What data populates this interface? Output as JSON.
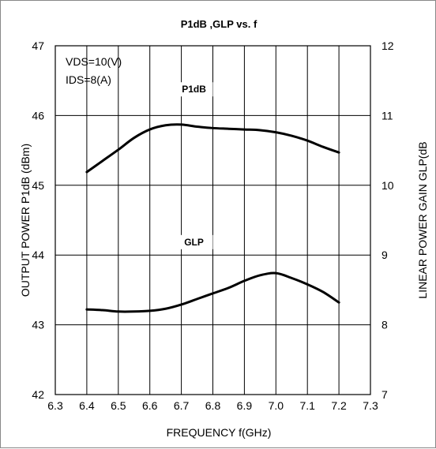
{
  "chart_data": {
    "type": "line",
    "title": "P1dB ,GLP vs. f",
    "xlabel": "FREQUENCY f(GHz)",
    "ylabel_left": "OUTPUT POWER P1dB (dBm)",
    "ylabel_right": "LINEAR POWER GAIN GLP(dB",
    "xlim": [
      6.3,
      7.3
    ],
    "ylim_left": [
      42,
      47
    ],
    "ylim_right": [
      7,
      12
    ],
    "x_ticks": [
      "6.3",
      "6.4",
      "6.5",
      "6.6",
      "6.7",
      "6.8",
      "6.9",
      "7.0",
      "7.1",
      "7.2",
      "7.3"
    ],
    "y_left_ticks": [
      "42",
      "43",
      "44",
      "45",
      "46",
      "47"
    ],
    "y_right_ticks": [
      "7",
      "8",
      "9",
      "10",
      "11",
      "12"
    ],
    "grid": true,
    "annotations": [
      "VDS=10(V)",
      "IDS=8(A)"
    ],
    "series": [
      {
        "name": "P1dB",
        "axis": "left",
        "color": "#000000",
        "x": [
          6.4,
          6.45,
          6.5,
          6.55,
          6.6,
          6.65,
          6.7,
          6.75,
          6.8,
          6.85,
          6.9,
          6.95,
          7.0,
          7.05,
          7.1,
          7.15,
          7.2
        ],
        "y": [
          45.19,
          45.35,
          45.51,
          45.68,
          45.8,
          45.86,
          45.87,
          45.84,
          45.82,
          45.81,
          45.8,
          45.79,
          45.76,
          45.71,
          45.64,
          45.55,
          45.47
        ]
      },
      {
        "name": "GLP",
        "axis": "right",
        "color": "#000000",
        "x": [
          6.4,
          6.45,
          6.5,
          6.55,
          6.6,
          6.65,
          6.7,
          6.75,
          6.8,
          6.85,
          6.9,
          6.95,
          7.0,
          7.05,
          7.1,
          7.15,
          7.2
        ],
        "y": [
          8.22,
          8.21,
          8.19,
          8.19,
          8.2,
          8.23,
          8.29,
          8.37,
          8.45,
          8.53,
          8.63,
          8.71,
          8.74,
          8.67,
          8.58,
          8.47,
          8.32
        ]
      }
    ]
  }
}
